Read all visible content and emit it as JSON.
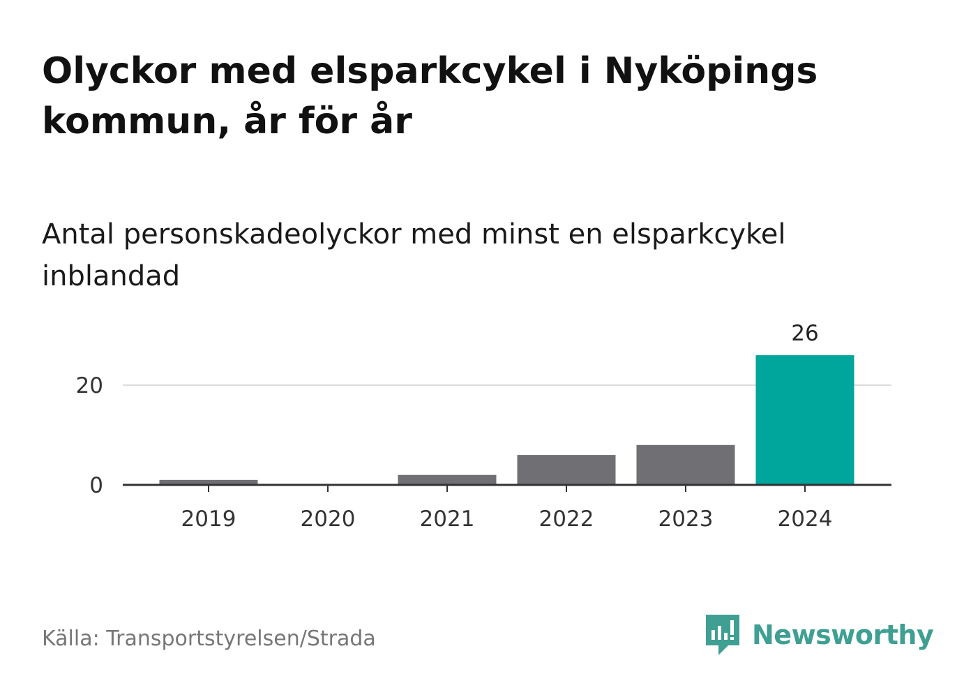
{
  "header": {
    "title": "Olyckor med elsparkcykel i Nyköpings kommun, år för år",
    "subtitle": "Antal personskadeolyckor med minst en elsparkcykel inblandad"
  },
  "footer": {
    "source": "Källa: Transportstyrelsen/Strada",
    "brand_name": "Newsworthy",
    "brand_icon": "newsworthy-logo-icon"
  },
  "colors": {
    "bar_default": "#706f74",
    "bar_highlight": "#00a59b",
    "brand": "#3e9f92"
  },
  "chart_data": {
    "type": "bar",
    "categories": [
      "2019",
      "2020",
      "2021",
      "2022",
      "2023",
      "2024"
    ],
    "values": [
      1,
      0,
      2,
      6,
      8,
      26
    ],
    "highlight_index": 5,
    "data_labels": [
      {
        "index": 5,
        "text": "26"
      }
    ],
    "y_ticks": [
      0,
      20
    ],
    "ylim": [
      0,
      30
    ],
    "grid": true,
    "xlabel": "",
    "ylabel": ""
  }
}
